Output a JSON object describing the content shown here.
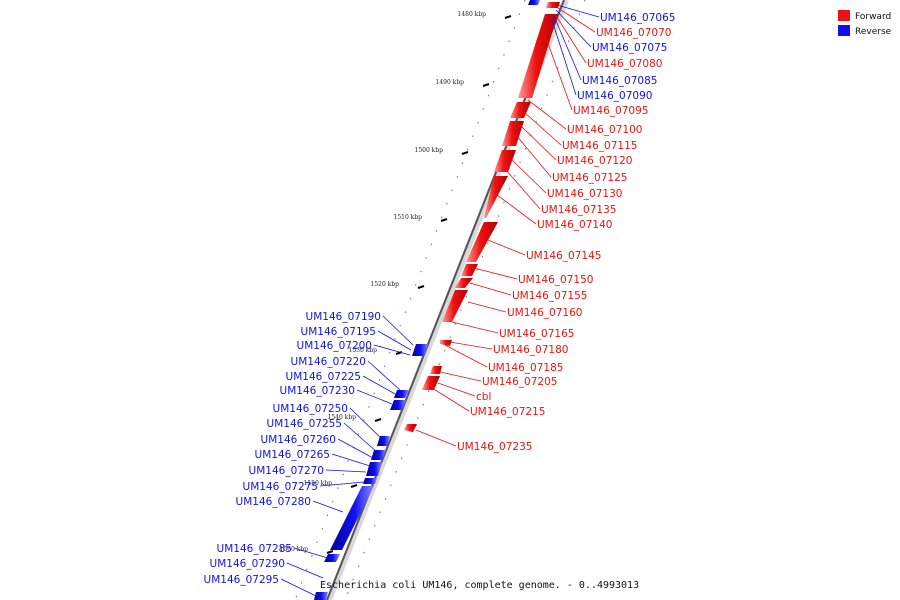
{
  "legend": [
    {
      "label": "Forward",
      "color": "#ee1111"
    },
    {
      "label": "Reverse",
      "color": "#1111ee"
    }
  ],
  "colors": {
    "forward": "#ee1111",
    "reverse": "#1111ee",
    "backbone": "#555555"
  },
  "caption": "Escherichia coli UM146, complete genome. - 0..4993013",
  "ticks": [
    "1480 kbp",
    "1490 kbp",
    "1500 kbp",
    "1510 kbp",
    "1520 kbp",
    "1530 kbp",
    "1540 kbp",
    "1550 kbp",
    "1560 kbp"
  ],
  "genes": [
    {
      "name": "UM146_07065",
      "strand": "reverse"
    },
    {
      "name": "UM146_07070",
      "strand": "forward"
    },
    {
      "name": "UM146_07075",
      "strand": "reverse"
    },
    {
      "name": "UM146_07080",
      "strand": "forward"
    },
    {
      "name": "UM146_07085",
      "strand": "reverse"
    },
    {
      "name": "UM146_07090",
      "strand": "reverse"
    },
    {
      "name": "UM146_07095",
      "strand": "forward"
    },
    {
      "name": "UM146_07100",
      "strand": "forward"
    },
    {
      "name": "UM146_07115",
      "strand": "forward"
    },
    {
      "name": "UM146_07120",
      "strand": "forward"
    },
    {
      "name": "UM146_07125",
      "strand": "forward"
    },
    {
      "name": "UM146_07130",
      "strand": "forward"
    },
    {
      "name": "UM146_07135",
      "strand": "forward"
    },
    {
      "name": "UM146_07140",
      "strand": "forward"
    },
    {
      "name": "UM146_07145",
      "strand": "forward"
    },
    {
      "name": "UM146_07150",
      "strand": "forward"
    },
    {
      "name": "UM146_07155",
      "strand": "forward"
    },
    {
      "name": "UM146_07160",
      "strand": "forward"
    },
    {
      "name": "UM146_07165",
      "strand": "forward"
    },
    {
      "name": "UM146_07180",
      "strand": "forward"
    },
    {
      "name": "UM146_07185",
      "strand": "forward"
    },
    {
      "name": "UM146_07205",
      "strand": "forward"
    },
    {
      "name": "cbl",
      "strand": "forward"
    },
    {
      "name": "UM146_07215",
      "strand": "forward"
    },
    {
      "name": "UM146_07235",
      "strand": "forward"
    },
    {
      "name": "UM146_07190",
      "strand": "reverse"
    },
    {
      "name": "UM146_07195",
      "strand": "reverse"
    },
    {
      "name": "UM146_07200",
      "strand": "reverse"
    },
    {
      "name": "UM146_07220",
      "strand": "reverse"
    },
    {
      "name": "UM146_07225",
      "strand": "reverse"
    },
    {
      "name": "UM146_07230",
      "strand": "reverse"
    },
    {
      "name": "UM146_07250",
      "strand": "reverse"
    },
    {
      "name": "UM146_07255",
      "strand": "reverse"
    },
    {
      "name": "UM146_07260",
      "strand": "reverse"
    },
    {
      "name": "UM146_07265",
      "strand": "reverse"
    },
    {
      "name": "UM146_07270",
      "strand": "reverse"
    },
    {
      "name": "UM146_07275",
      "strand": "reverse"
    },
    {
      "name": "UM146_07280",
      "strand": "reverse"
    },
    {
      "name": "UM146_07285",
      "strand": "reverse"
    },
    {
      "name": "UM146_07290",
      "strand": "reverse"
    },
    {
      "name": "UM146_07295",
      "strand": "reverse"
    }
  ]
}
